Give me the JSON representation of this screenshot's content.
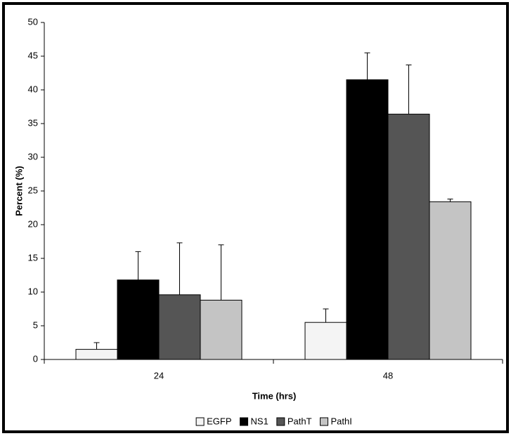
{
  "chart_data": {
    "type": "bar",
    "x_label": "Time (hrs)",
    "y_label": "Percent (%)",
    "categories": [
      "24",
      "48"
    ],
    "series": [
      {
        "name": "EGFP",
        "color": "#f4f4f4",
        "values": [
          1.5,
          5.5
        ],
        "errors": [
          1.0,
          2.0
        ]
      },
      {
        "name": "NS1",
        "color": "#000000",
        "values": [
          11.8,
          41.5
        ],
        "errors": [
          4.2,
          4.0
        ]
      },
      {
        "name": "PathT",
        "color": "#555555",
        "values": [
          9.6,
          36.4
        ],
        "errors": [
          7.7,
          7.3
        ]
      },
      {
        "name": "PathI",
        "color": "#c4c4c4",
        "values": [
          8.8,
          23.4
        ],
        "errors": [
          8.2,
          0.4
        ]
      }
    ],
    "ylim": [
      0,
      50
    ],
    "yticks": [
      0,
      5,
      10,
      15,
      20,
      25,
      30,
      35,
      40,
      45,
      50
    ],
    "legend": "bottom"
  }
}
